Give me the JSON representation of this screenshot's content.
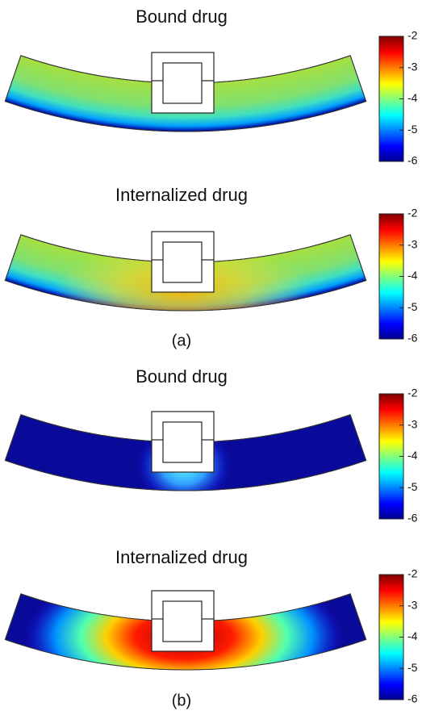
{
  "chart_data": [
    {
      "type": "heatmap",
      "title": "Bound drug",
      "zlim": [
        -6,
        -2
      ],
      "zticks": [
        -6,
        -5,
        -4,
        -3,
        -2
      ]
    },
    {
      "type": "heatmap",
      "title": "Internalized drug",
      "zlim": [
        -6,
        -2
      ],
      "zticks": [
        -6,
        -5,
        -4,
        -3,
        -2
      ]
    },
    {
      "type": "heatmap",
      "title": "Bound drug",
      "zlim": [
        -6,
        -2
      ],
      "zticks": [
        -6,
        -5,
        -4,
        -3,
        -2
      ]
    },
    {
      "type": "heatmap",
      "title": "Internalized drug",
      "zlim": [
        -6,
        -2
      ],
      "zticks": [
        -6,
        -5,
        -4,
        -3,
        -2
      ]
    }
  ],
  "captions": [
    "(a)",
    "(b)"
  ]
}
